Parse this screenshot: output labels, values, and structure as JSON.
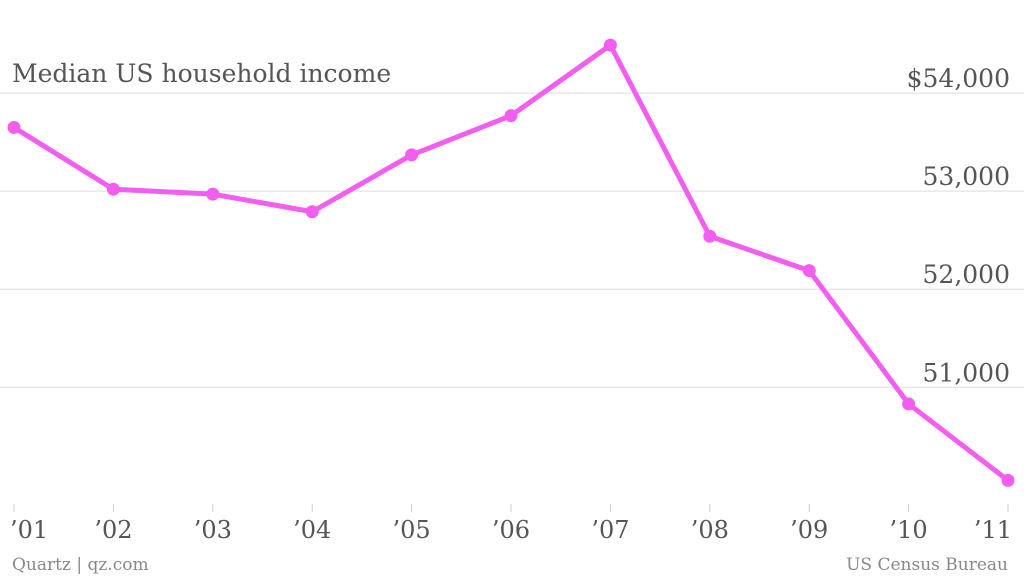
{
  "chart_data": {
    "type": "line",
    "title": "Median US household income",
    "x": [
      "’01",
      "’02",
      "’03",
      "’04",
      "’05",
      "’06",
      "’07",
      "’08",
      "’09",
      "’10",
      "’11"
    ],
    "series": [
      {
        "values": [
          53650,
          53020,
          52970,
          52790,
          53370,
          53770,
          54490,
          52540,
          52190,
          50830,
          50050
        ]
      }
    ],
    "y_ticks": [
      51000,
      52000,
      53000,
      54000
    ],
    "y_tick_labels": [
      "51,000",
      "52,000",
      "53,000",
      "$54,000"
    ],
    "ylim": [
      49850,
      54950
    ],
    "grid": true,
    "line_color": "#f45ef0"
  },
  "footer": {
    "source_left": "Quartz | qz.com",
    "source_right": "US Census Bureau"
  }
}
